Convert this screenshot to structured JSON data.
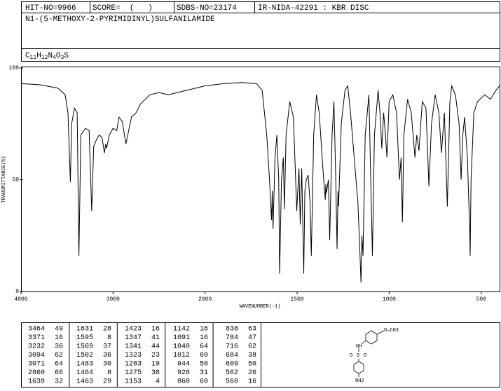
{
  "header": {
    "hit_no": "HIT-NO=9966",
    "score": "SCORE=  (   )",
    "sdbs_no": "SDBS-NO=23174",
    "ir": "IR-NIDA-42291 : KBR DISC",
    "name": "N1-(5-METHOXY-2-PYRIMIDINYL)SULFANILAMIDE",
    "formula": [
      "C",
      "11",
      "H",
      "12",
      "N",
      "4",
      "O",
      "3",
      "S"
    ]
  },
  "chart_data": {
    "type": "line",
    "xlabel": "WAVENUMBER(-1)",
    "ylabel": "TRANSMITTANCE(%)",
    "color": "#000000",
    "xlim": [
      4000,
      400
    ],
    "xticks": [
      4000,
      3000,
      2000,
      1500,
      1000,
      500
    ],
    "ylim": [
      0,
      100
    ],
    "yticks": [
      0,
      50,
      100
    ],
    "x": [
      4000,
      3800,
      3600,
      3520,
      3490,
      3464,
      3450,
      3420,
      3390,
      3371,
      3350,
      3300,
      3260,
      3232,
      3210,
      3180,
      3150,
      3120,
      3094,
      3080,
      3071,
      3040,
      3000,
      2960,
      2935,
      2900,
      2860,
      2840,
      2800,
      2750,
      2700,
      2600,
      2500,
      2400,
      2300,
      2200,
      2100,
      2000,
      1900,
      1800,
      1720,
      1690,
      1665,
      1650,
      1639,
      1635,
      1631,
      1620,
      1610,
      1600,
      1595,
      1585,
      1575,
      1569,
      1560,
      1540,
      1520,
      1502,
      1490,
      1483,
      1475,
      1464,
      1458,
      1450,
      1440,
      1430,
      1423,
      1410,
      1395,
      1380,
      1360,
      1347,
      1344,
      1341,
      1330,
      1323,
      1310,
      1300,
      1290,
      1283,
      1278,
      1275,
      1260,
      1240,
      1225,
      1210,
      1190,
      1170,
      1160,
      1153,
      1148,
      1142,
      1130,
      1110,
      1100,
      1091,
      1080,
      1060,
      1050,
      1040,
      1030,
      1020,
      1012,
      1000,
      980,
      960,
      944,
      935,
      928,
      920,
      900,
      880,
      860,
      850,
      838,
      820,
      800,
      784,
      770,
      750,
      730,
      716,
      700,
      684,
      670,
      660,
      640,
      620,
      609,
      600,
      590,
      575,
      562,
      560,
      555,
      540,
      520,
      480,
      450,
      420,
      400
    ],
    "values": [
      93,
      92.5,
      91,
      88,
      80,
      49,
      75,
      82,
      80,
      16,
      70,
      73,
      72,
      36,
      65,
      68,
      70,
      69,
      62,
      66,
      64,
      70,
      73,
      72,
      78,
      76,
      66,
      70,
      78,
      80,
      84,
      88,
      89,
      88,
      89,
      90,
      91,
      92,
      93,
      93.5,
      93,
      90,
      70,
      50,
      32,
      45,
      28,
      60,
      70,
      50,
      8,
      50,
      60,
      37,
      70,
      85,
      78,
      36,
      55,
      30,
      55,
      8,
      45,
      50,
      52,
      40,
      16,
      70,
      88,
      80,
      55,
      41,
      48,
      44,
      50,
      23,
      70,
      85,
      50,
      19,
      45,
      38,
      75,
      90,
      92,
      80,
      60,
      40,
      20,
      4,
      25,
      16,
      70,
      88,
      50,
      16,
      70,
      90,
      80,
      64,
      80,
      70,
      60,
      85,
      88,
      80,
      50,
      60,
      31,
      70,
      86,
      80,
      60,
      70,
      63,
      85,
      82,
      47,
      75,
      88,
      80,
      62,
      80,
      38,
      85,
      92,
      88,
      75,
      50,
      70,
      78,
      60,
      26,
      16,
      50,
      80,
      85,
      88,
      86,
      90,
      92
    ]
  },
  "peak_table": {
    "peaks": [
      [
        3464,
        49
      ],
      [
        3371,
        16
      ],
      [
        3232,
        36
      ],
      [
        3094,
        62
      ],
      [
        3071,
        64
      ],
      [
        2860,
        66
      ],
      [
        1639,
        32
      ],
      [
        1631,
        28
      ],
      [
        1595,
        8
      ],
      [
        1569,
        37
      ],
      [
        1502,
        36
      ],
      [
        1483,
        30
      ],
      [
        1464,
        8
      ],
      [
        1463,
        29
      ],
      [
        1423,
        16
      ],
      [
        1347,
        41
      ],
      [
        1341,
        44
      ],
      [
        1323,
        23
      ],
      [
        1283,
        19
      ],
      [
        1275,
        38
      ],
      [
        1153,
        4
      ],
      [
        1142,
        16
      ],
      [
        1091,
        16
      ],
      [
        1040,
        64
      ],
      [
        1012,
        60
      ],
      [
        944,
        50
      ],
      [
        928,
        31
      ],
      [
        860,
        60
      ],
      [
        838,
        63
      ],
      [
        784,
        47
      ],
      [
        716,
        62
      ],
      [
        684,
        38
      ],
      [
        609,
        50
      ],
      [
        562,
        26
      ],
      [
        560,
        16
      ]
    ]
  },
  "structure": {
    "labels": [
      "O—CH3",
      "NH",
      "S",
      "O",
      "O",
      "NH2"
    ]
  }
}
